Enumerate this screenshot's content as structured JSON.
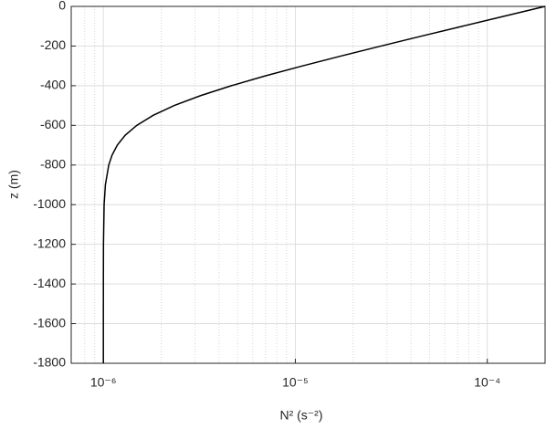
{
  "chart_data": {
    "type": "line",
    "color": "#000000",
    "xscale": "log",
    "grid": true,
    "xlabel": "N² (s⁻²)",
    "ylabel": "z (m)",
    "xlim": [
      6.8e-07,
      0.0002
    ],
    "ylim": [
      -1800,
      0
    ],
    "xticks": [
      {
        "value": 1e-06,
        "label": "10⁻⁶"
      },
      {
        "value": 1e-05,
        "label": "10⁻⁵"
      },
      {
        "value": 0.0001,
        "label": "10⁻⁴"
      }
    ],
    "xminorticks": [
      8e-07,
      9e-07,
      2e-06,
      3e-06,
      4e-06,
      5e-06,
      6e-06,
      7e-06,
      8e-06,
      9e-06,
      2e-05,
      3e-05,
      4e-05,
      5e-05,
      6e-05,
      7e-05,
      8e-05,
      9e-05
    ],
    "yticks": [
      0,
      -200,
      -400,
      -600,
      -800,
      -1000,
      -1200,
      -1400,
      -1600,
      -1800
    ],
    "x": [
      0.0002,
      0.0001217,
      7.4208e-05,
      4.5403e-05,
      2.7932e-05,
      1.7335e-05,
      1.0908e-05,
      7.0093e-06,
      4.6448e-06,
      3.2107e-06,
      2.3408e-06,
      1.8133e-06,
      1.4933e-06,
      1.2992e-06,
      1.1815e-06,
      1.1101e-06,
      1.0668e-06,
      1.0246e-06,
      1.009e-06,
      1.0012e-06,
      1.0002e-06,
      1e-06,
      1e-06
    ],
    "values": [
      0,
      -50,
      -100,
      -150,
      -200,
      -250,
      -300,
      -350,
      -400,
      -450,
      -500,
      -550,
      -600,
      -650,
      -700,
      -750,
      -800,
      -900,
      -1000,
      -1200,
      -1400,
      -1600,
      -1800
    ]
  }
}
